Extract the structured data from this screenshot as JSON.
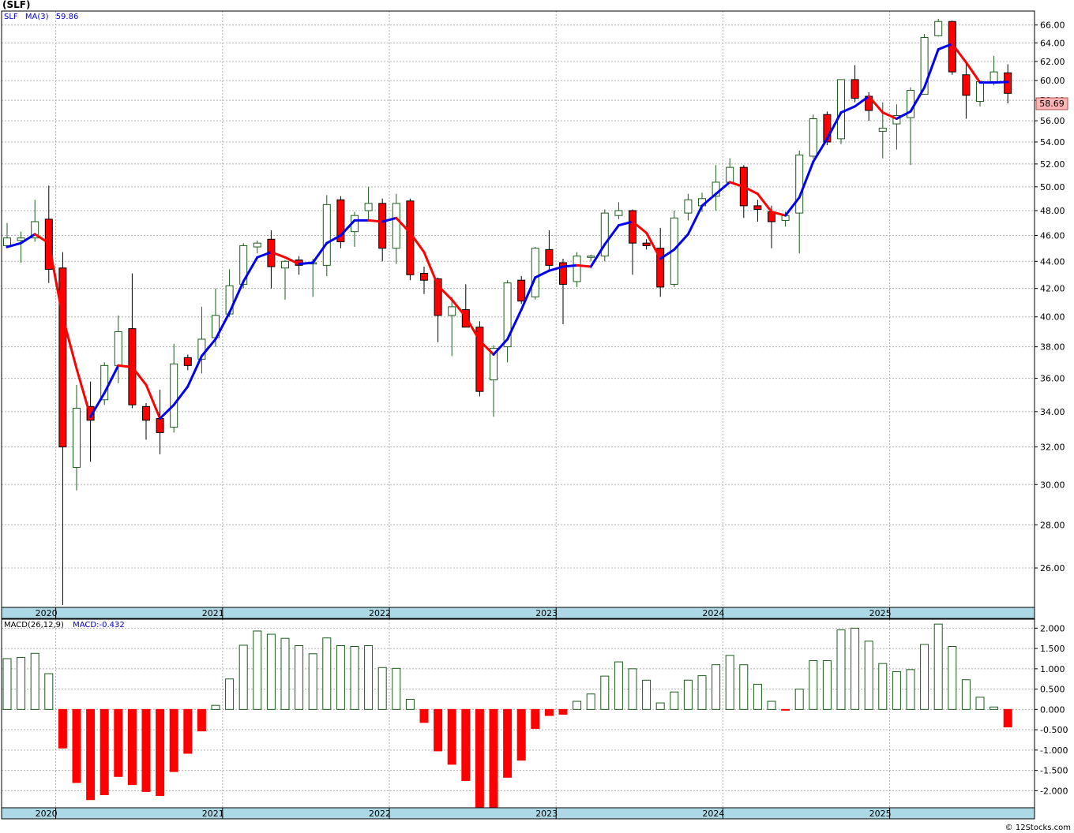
{
  "ticker_label": "(SLF)",
  "footer_credit": "© 12Stocks.com",
  "colors": {
    "up": "#1a5c1a",
    "down": "#ff0000",
    "ma_up": "#0000ee",
    "ma_down": "#ff0000",
    "axis_band": "#add8e6",
    "grid": "#b0b0b0",
    "last_price_bg": "#ffb4b4"
  },
  "price_panel": {
    "symbol": "SLF",
    "ma_label": "MA(3)",
    "ma_value": "59.86",
    "last_price": "58.69"
  },
  "macd_panel": {
    "label": "MACD(26,12,9)",
    "value_label": "MACD:-0.432"
  },
  "chart_data": [
    {
      "type": "candlestick",
      "title": "",
      "series_name": "SLF",
      "interval": "monthly",
      "x_tick_labels": [
        "2020",
        "2021",
        "2022",
        "2023",
        "2024",
        "2025"
      ],
      "y_tick_labels": [
        "26.00",
        "28.00",
        "30.00",
        "32.00",
        "34.00",
        "36.00",
        "38.00",
        "40.00",
        "42.00",
        "44.00",
        "46.00",
        "48.00",
        "50.00",
        "52.00",
        "54.00",
        "56.00",
        "58.00",
        "60.00",
        "62.00",
        "64.00",
        "66.00"
      ],
      "ylim": [
        24.3,
        67.6
      ],
      "grid": true,
      "first_period": "2019-09",
      "candles": [
        {
          "o": 45.2,
          "h": 47.0,
          "l": 45.0,
          "c": 45.8
        },
        {
          "o": 45.6,
          "h": 46.3,
          "l": 43.9,
          "c": 45.8
        },
        {
          "o": 45.8,
          "h": 48.9,
          "l": 45.5,
          "c": 47.1
        },
        {
          "o": 47.3,
          "h": 50.1,
          "l": 42.4,
          "c": 43.4
        },
        {
          "o": 43.5,
          "h": 44.7,
          "l": 24.4,
          "c": 32.0
        },
        {
          "o": 30.9,
          "h": 35.6,
          "l": 29.7,
          "c": 34.2
        },
        {
          "o": 34.3,
          "h": 35.8,
          "l": 31.2,
          "c": 33.5
        },
        {
          "o": 34.7,
          "h": 37.0,
          "l": 34.4,
          "c": 36.8
        },
        {
          "o": 36.8,
          "h": 40.1,
          "l": 35.7,
          "c": 39.0
        },
        {
          "o": 39.2,
          "h": 43.1,
          "l": 34.2,
          "c": 34.4
        },
        {
          "o": 34.3,
          "h": 34.5,
          "l": 32.4,
          "c": 33.5
        },
        {
          "o": 33.6,
          "h": 35.3,
          "l": 31.6,
          "c": 32.8
        },
        {
          "o": 33.1,
          "h": 38.2,
          "l": 32.8,
          "c": 36.9
        },
        {
          "o": 37.3,
          "h": 37.5,
          "l": 36.5,
          "c": 36.8
        },
        {
          "o": 37.2,
          "h": 40.7,
          "l": 36.3,
          "c": 38.5
        },
        {
          "o": 38.6,
          "h": 42.0,
          "l": 38.0,
          "c": 40.1
        },
        {
          "o": 40.2,
          "h": 43.4,
          "l": 40.0,
          "c": 42.2
        },
        {
          "o": 42.3,
          "h": 45.4,
          "l": 42.0,
          "c": 45.2
        },
        {
          "o": 45.1,
          "h": 45.6,
          "l": 44.6,
          "c": 45.4
        },
        {
          "o": 45.7,
          "h": 46.4,
          "l": 42.0,
          "c": 43.6
        },
        {
          "o": 43.5,
          "h": 44.1,
          "l": 41.2,
          "c": 44.0
        },
        {
          "o": 44.1,
          "h": 44.4,
          "l": 43.0,
          "c": 43.7
        },
        {
          "o": 43.8,
          "h": 44.2,
          "l": 41.4,
          "c": 43.9
        },
        {
          "o": 43.7,
          "h": 49.3,
          "l": 42.9,
          "c": 48.5
        },
        {
          "o": 48.9,
          "h": 49.2,
          "l": 45.0,
          "c": 45.5
        },
        {
          "o": 46.3,
          "h": 47.9,
          "l": 45.1,
          "c": 47.6
        },
        {
          "o": 48.0,
          "h": 50.0,
          "l": 47.2,
          "c": 48.6
        },
        {
          "o": 48.6,
          "h": 49.0,
          "l": 44.0,
          "c": 45.0
        },
        {
          "o": 45.0,
          "h": 49.4,
          "l": 43.8,
          "c": 48.6
        },
        {
          "o": 48.8,
          "h": 49.0,
          "l": 42.6,
          "c": 43.0
        },
        {
          "o": 43.1,
          "h": 43.6,
          "l": 41.6,
          "c": 42.6
        },
        {
          "o": 42.7,
          "h": 42.8,
          "l": 38.3,
          "c": 40.1
        },
        {
          "o": 40.1,
          "h": 41.4,
          "l": 37.4,
          "c": 40.7
        },
        {
          "o": 40.5,
          "h": 42.3,
          "l": 39.4,
          "c": 39.3
        },
        {
          "o": 39.3,
          "h": 39.7,
          "l": 34.9,
          "c": 35.2
        },
        {
          "o": 35.9,
          "h": 38.1,
          "l": 33.7,
          "c": 37.9
        },
        {
          "o": 38.0,
          "h": 42.6,
          "l": 37.0,
          "c": 42.4
        },
        {
          "o": 42.6,
          "h": 42.9,
          "l": 40.9,
          "c": 41.1
        },
        {
          "o": 41.4,
          "h": 45.1,
          "l": 41.2,
          "c": 45.0
        },
        {
          "o": 44.9,
          "h": 46.4,
          "l": 43.3,
          "c": 43.7
        },
        {
          "o": 43.9,
          "h": 44.2,
          "l": 39.5,
          "c": 42.3
        },
        {
          "o": 42.5,
          "h": 44.7,
          "l": 42.1,
          "c": 44.4
        },
        {
          "o": 44.3,
          "h": 44.5,
          "l": 44.0,
          "c": 44.4
        },
        {
          "o": 44.4,
          "h": 48.1,
          "l": 44.0,
          "c": 47.8
        },
        {
          "o": 47.6,
          "h": 48.7,
          "l": 47.3,
          "c": 48.0
        },
        {
          "o": 48.0,
          "h": 48.1,
          "l": 43.0,
          "c": 45.4
        },
        {
          "o": 45.4,
          "h": 45.7,
          "l": 44.9,
          "c": 45.2
        },
        {
          "o": 45.0,
          "h": 46.6,
          "l": 41.4,
          "c": 42.1
        },
        {
          "o": 42.3,
          "h": 48.0,
          "l": 42.1,
          "c": 47.4
        },
        {
          "o": 47.8,
          "h": 49.4,
          "l": 47.2,
          "c": 48.9
        },
        {
          "o": 48.4,
          "h": 49.5,
          "l": 47.9,
          "c": 49.0
        },
        {
          "o": 49.2,
          "h": 51.9,
          "l": 48.0,
          "c": 50.4
        },
        {
          "o": 50.4,
          "h": 52.5,
          "l": 50.3,
          "c": 51.7
        },
        {
          "o": 51.7,
          "h": 51.9,
          "l": 47.4,
          "c": 48.4
        },
        {
          "o": 48.4,
          "h": 48.9,
          "l": 47.1,
          "c": 48.1
        },
        {
          "o": 47.9,
          "h": 48.4,
          "l": 45.0,
          "c": 47.1
        },
        {
          "o": 47.2,
          "h": 47.9,
          "l": 46.7,
          "c": 47.6
        },
        {
          "o": 47.8,
          "h": 53.2,
          "l": 44.6,
          "c": 52.8
        },
        {
          "o": 52.7,
          "h": 56.6,
          "l": 52.5,
          "c": 56.2
        },
        {
          "o": 56.6,
          "h": 56.9,
          "l": 53.7,
          "c": 54.0
        },
        {
          "o": 54.3,
          "h": 60.1,
          "l": 53.8,
          "c": 60.1
        },
        {
          "o": 60.1,
          "h": 61.6,
          "l": 57.8,
          "c": 58.2
        },
        {
          "o": 58.4,
          "h": 58.8,
          "l": 56.0,
          "c": 57.0
        },
        {
          "o": 55.0,
          "h": 57.8,
          "l": 52.5,
          "c": 55.3
        },
        {
          "o": 55.7,
          "h": 57.6,
          "l": 53.3,
          "c": 56.5
        },
        {
          "o": 56.3,
          "h": 59.3,
          "l": 51.9,
          "c": 59.0
        },
        {
          "o": 58.6,
          "h": 65.0,
          "l": 58.6,
          "c": 64.6
        },
        {
          "o": 64.8,
          "h": 66.7,
          "l": 64.7,
          "c": 66.4
        },
        {
          "o": 66.4,
          "h": 66.5,
          "l": 60.6,
          "c": 60.9
        },
        {
          "o": 60.6,
          "h": 61.7,
          "l": 56.2,
          "c": 58.5
        },
        {
          "o": 57.9,
          "h": 59.9,
          "l": 57.4,
          "c": 59.9
        },
        {
          "o": 59.9,
          "h": 62.6,
          "l": 59.5,
          "c": 60.9
        },
        {
          "o": 60.8,
          "h": 61.7,
          "l": 57.7,
          "c": 58.7
        }
      ],
      "ma3": [
        45.1,
        45.4,
        46.1,
        45.4,
        40.0,
        36.6,
        33.7,
        35.1,
        36.8,
        36.7,
        35.6,
        33.6,
        34.4,
        35.5,
        37.4,
        38.5,
        40.3,
        42.5,
        44.3,
        44.7,
        44.3,
        43.8,
        43.9,
        45.4,
        46.0,
        47.2,
        47.2,
        47.1,
        47.4,
        46.2,
        44.7,
        42.2,
        41.2,
        40.0,
        38.4,
        37.5,
        38.5,
        40.5,
        42.8,
        43.3,
        43.6,
        43.7,
        43.6,
        45.3,
        46.8,
        47.1,
        46.2,
        44.2,
        44.9,
        46.1,
        48.4,
        49.4,
        50.4,
        50.0,
        49.4,
        47.9,
        47.6,
        49.1,
        52.2,
        54.3,
        56.8,
        57.4,
        58.4,
        56.8,
        56.2,
        56.9,
        59.3,
        63.3,
        63.9,
        61.9,
        59.8,
        59.8,
        59.86
      ],
      "last_price": 58.69
    },
    {
      "type": "bar",
      "title": "",
      "series_name": "MACD(26,12,9)",
      "y_tick_labels": [
        "-2.000",
        "-1.500",
        "-1.000",
        "-0.500",
        "0.000",
        "0.500",
        "1.000",
        "1.500",
        "2.000"
      ],
      "ylim": [
        -2.42,
        2.22
      ],
      "grid": true,
      "values": [
        1.25,
        1.28,
        1.38,
        0.88,
        -0.95,
        -1.8,
        -2.22,
        -2.1,
        -1.65,
        -1.85,
        -2.02,
        -2.12,
        -1.53,
        -1.08,
        -0.53,
        0.1,
        0.75,
        1.58,
        1.93,
        1.85,
        1.75,
        1.57,
        1.37,
        1.76,
        1.57,
        1.55,
        1.57,
        1.03,
        1.01,
        0.25,
        -0.32,
        -1.02,
        -1.35,
        -1.75,
        -2.42,
        -2.42,
        -1.67,
        -1.25,
        -0.47,
        -0.15,
        -0.12,
        0.2,
        0.38,
        0.82,
        1.17,
        1.0,
        0.72,
        0.16,
        0.43,
        0.72,
        0.83,
        1.1,
        1.33,
        1.1,
        0.62,
        0.2,
        -0.02,
        0.5,
        1.2,
        1.2,
        1.96,
        2.0,
        1.68,
        1.13,
        0.93,
        0.98,
        1.6,
        2.1,
        1.55,
        0.73,
        0.3,
        0.06,
        -0.432
      ]
    }
  ]
}
